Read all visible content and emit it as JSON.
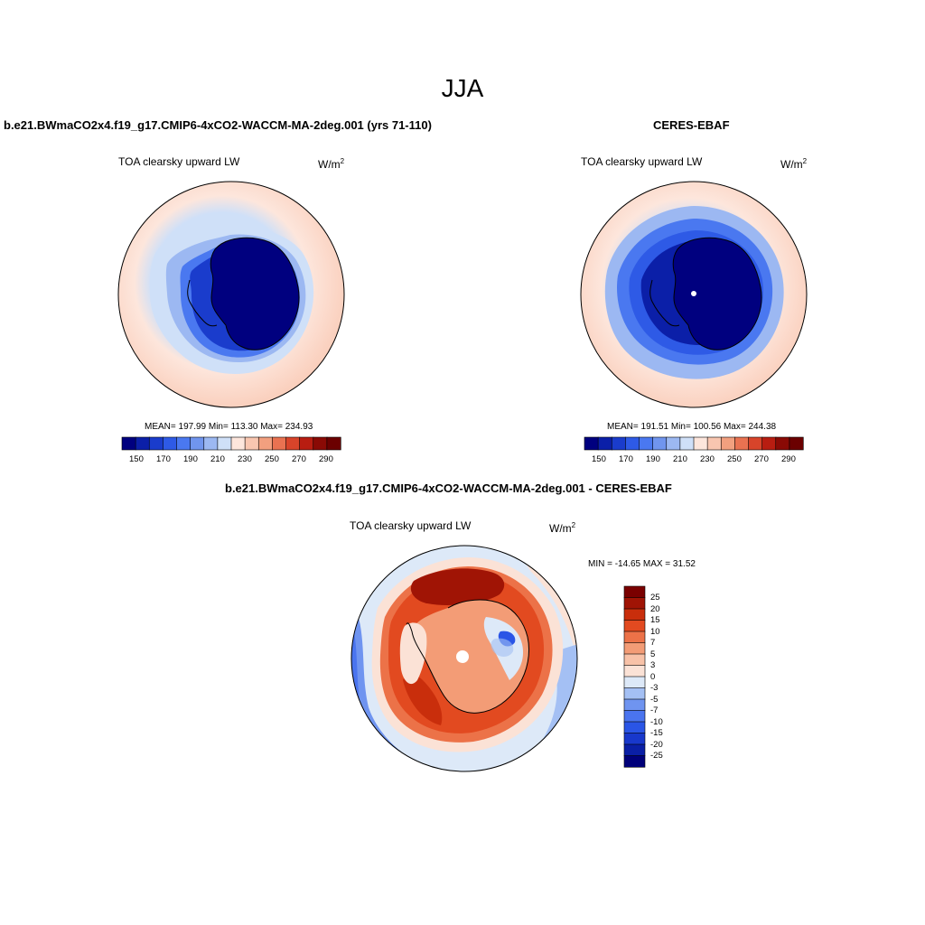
{
  "figure": {
    "season": "JJA",
    "panels": [
      {
        "title": "b.e21.BWmaCO2x4.f19_g17.CMIP6-4xCO2-WACCM-MA-2deg.001 (yrs 71-110)",
        "subtitle": "TOA clearsky upward LW",
        "units_base": "W/m",
        "units_exp": "2",
        "stats": "MEAN= 197.99  Min= 113.30  Max= 234.93",
        "colorbar_ticks": [
          "150",
          "170",
          "190",
          "210",
          "230",
          "250",
          "270",
          "290"
        ]
      },
      {
        "title": "CERES-EBAF",
        "subtitle": "TOA clearsky upward LW",
        "units_base": "W/m",
        "units_exp": "2",
        "stats": "MEAN= 191.51  Min= 100.56  Max= 244.38",
        "colorbar_ticks": [
          "150",
          "170",
          "190",
          "210",
          "230",
          "250",
          "270",
          "290"
        ]
      },
      {
        "title": "b.e21.BWmaCO2x4.f19_g17.CMIP6-4xCO2-WACCM-MA-2deg.001 - CERES-EBAF",
        "subtitle": "TOA clearsky upward LW",
        "units_base": "W/m",
        "units_exp": "2",
        "stats": "MIN = -14.65 MAX =  31.52",
        "colorbar_ticks": [
          "25",
          "20",
          "15",
          "10",
          "7",
          "5",
          "3",
          "0",
          "-3",
          "-5",
          "-7",
          "-10",
          "-15",
          "-20",
          "-25"
        ]
      }
    ]
  },
  "chart_data": [
    {
      "type": "heatmap",
      "title": "b.e21.BWmaCO2x4.f19_g17.CMIP6-4xCO2-WACCM-MA-2deg.001 (yrs 71-110)",
      "variable": "TOA clearsky upward LW",
      "units": "W/m2",
      "projection": "south polar stereographic",
      "levels": [
        150,
        160,
        170,
        180,
        190,
        200,
        210,
        220,
        230,
        240,
        250,
        260,
        270,
        280,
        290
      ],
      "colors": [
        "#00007f",
        "#0b1fa8",
        "#1a3ccc",
        "#2e5ae6",
        "#4a78f0",
        "#7095ee",
        "#9cb8f2",
        "#cfe0f8",
        "#fde6dc",
        "#f9c6b0",
        "#f2a07f",
        "#e97251",
        "#d8442a",
        "#b81d11",
        "#8a0a05",
        "#6b0000"
      ],
      "mean": 197.99,
      "min": 113.3,
      "max": 234.93
    },
    {
      "type": "heatmap",
      "title": "CERES-EBAF",
      "variable": "TOA clearsky upward LW",
      "units": "W/m2",
      "projection": "south polar stereographic",
      "levels": [
        150,
        160,
        170,
        180,
        190,
        200,
        210,
        220,
        230,
        240,
        250,
        260,
        270,
        280,
        290
      ],
      "colors": [
        "#00007f",
        "#0b1fa8",
        "#1a3ccc",
        "#2e5ae6",
        "#4a78f0",
        "#7095ee",
        "#9cb8f2",
        "#cfe0f8",
        "#fde6dc",
        "#f9c6b0",
        "#f2a07f",
        "#e97251",
        "#d8442a",
        "#b81d11",
        "#8a0a05",
        "#6b0000"
      ],
      "mean": 191.51,
      "min": 100.56,
      "max": 244.38
    },
    {
      "type": "heatmap",
      "title": "b.e21.BWmaCO2x4.f19_g17.CMIP6-4xCO2-WACCM-MA-2deg.001 - CERES-EBAF",
      "variable": "TOA clearsky upward LW",
      "units": "W/m2",
      "projection": "south polar stereographic",
      "levels": [
        -25,
        -20,
        -15,
        -10,
        -7,
        -5,
        -3,
        0,
        3,
        5,
        7,
        10,
        15,
        20,
        25
      ],
      "colors": [
        "#00007a",
        "#0a1fa6",
        "#1838cc",
        "#2a55e6",
        "#4a74ef",
        "#6f94f0",
        "#a4c0f4",
        "#dde9f8",
        "#fbe2d6",
        "#f8c2a8",
        "#f39c76",
        "#ec7248",
        "#e24a20",
        "#c92e0c",
        "#a01405",
        "#7a0000"
      ],
      "min": -14.65,
      "max": 31.52
    }
  ]
}
